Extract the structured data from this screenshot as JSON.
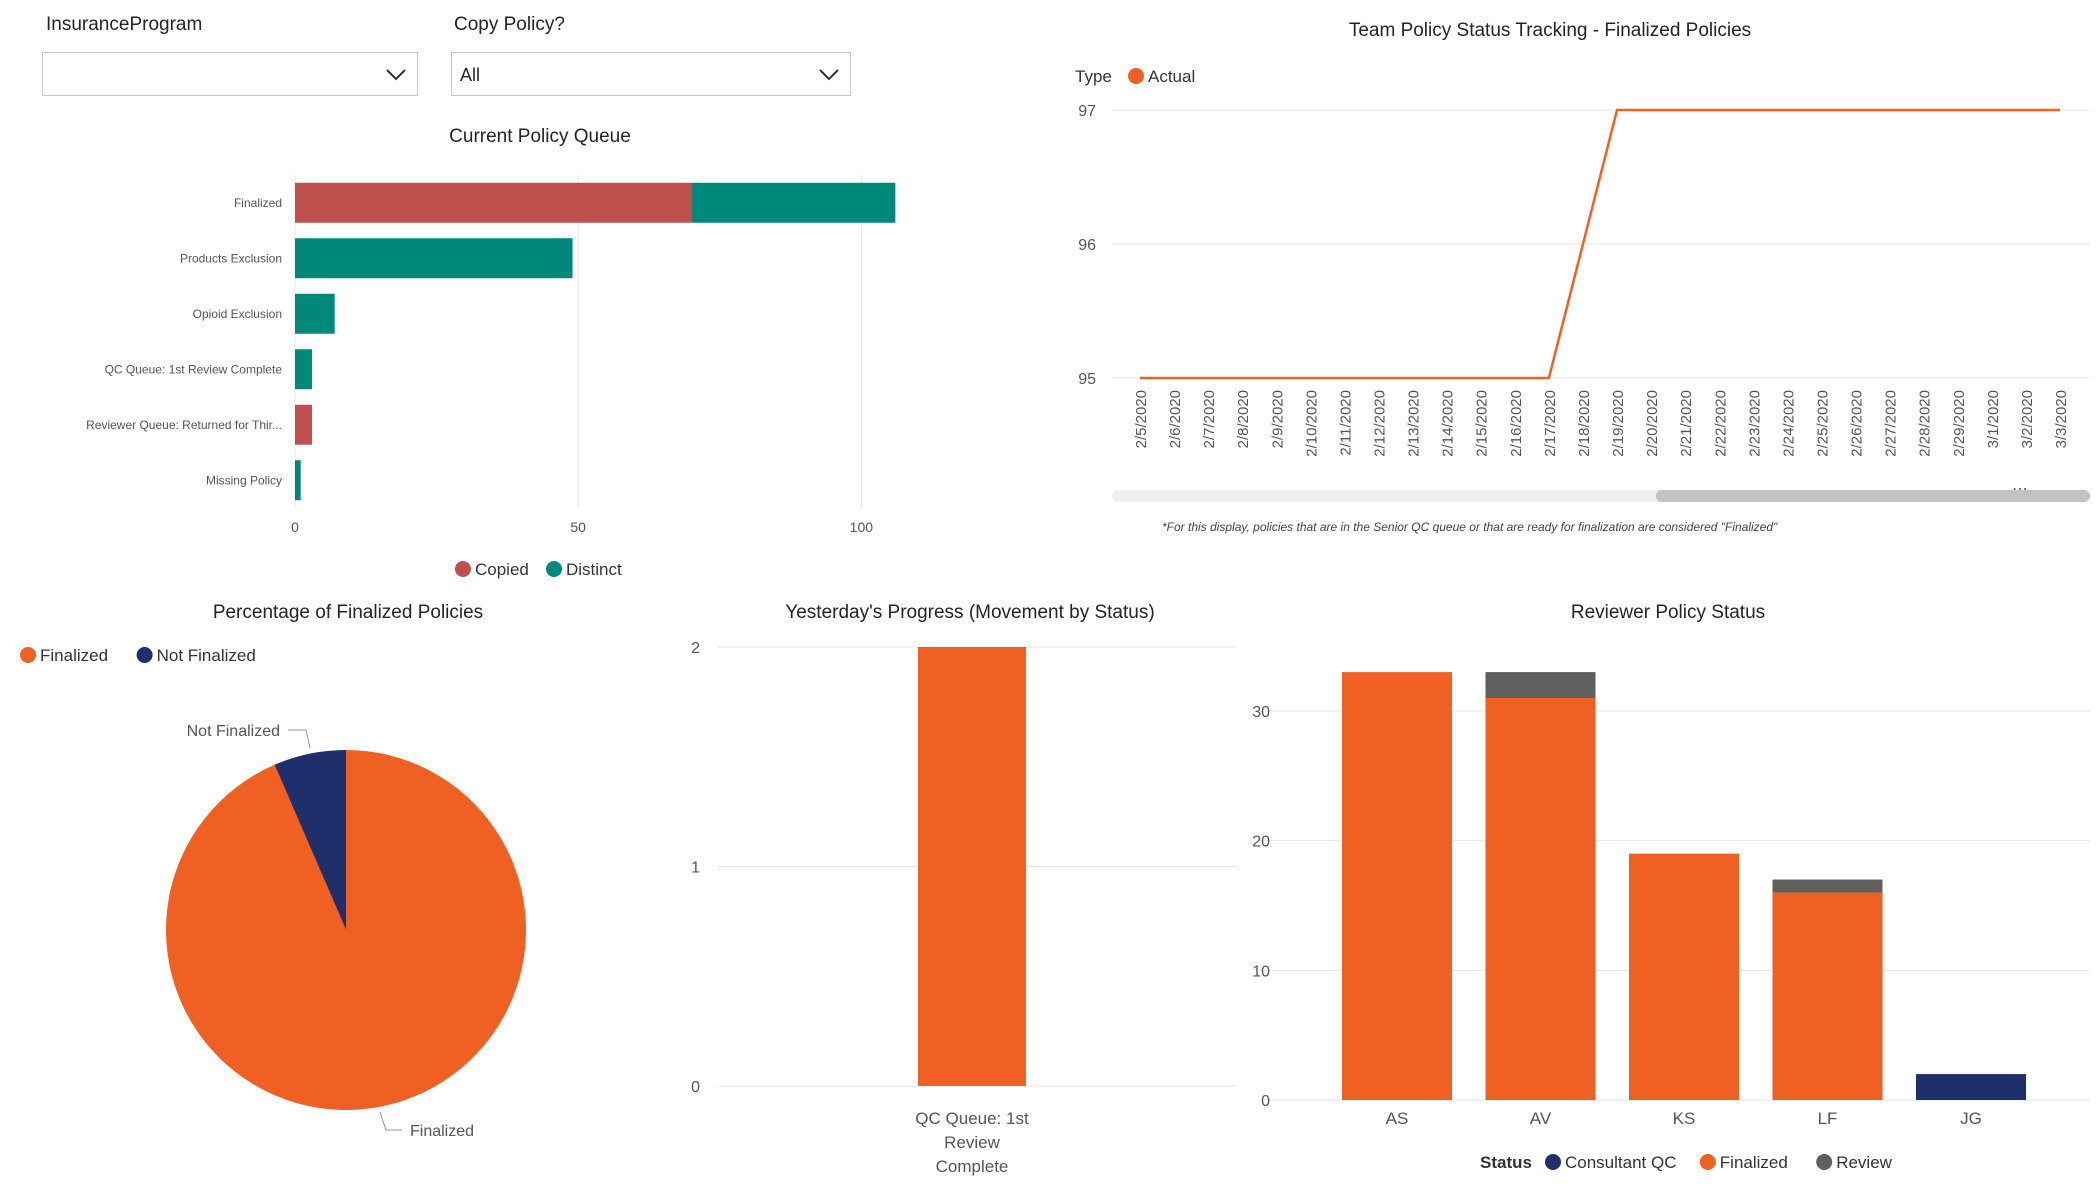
{
  "slicers": {
    "insurance_program": {
      "label": "InsuranceProgram",
      "value": ""
    },
    "copy_policy": {
      "label": "Copy Policy?",
      "value": "All"
    }
  },
  "colors": {
    "copied": "#c0504d",
    "distinct": "#00897b",
    "orange": "#f06022",
    "navy": "#1f2f6b",
    "gray": "#5f5f5f",
    "grid": "#e6e6e6"
  },
  "queue_chart": {
    "title": "Current Policy Queue",
    "legend": [
      {
        "label": "Copied"
      },
      {
        "label": "Distinct"
      }
    ],
    "chart_data": {
      "type": "bar",
      "orientation": "horizontal",
      "stacked": true,
      "categories": [
        "Finalized",
        "Products Exclusion",
        "Opioid Exclusion",
        "QC Queue: 1st Review Complete",
        "Reviewer Queue: Returned for Thir...",
        "Missing Policy"
      ],
      "series": [
        {
          "name": "Copied",
          "values": [
            70,
            0,
            0,
            0,
            3,
            0
          ]
        },
        {
          "name": "Distinct",
          "values": [
            36,
            49,
            7,
            3,
            0,
            1
          ]
        }
      ],
      "xticks": [
        0,
        50,
        100
      ],
      "xlim": [
        0,
        110
      ],
      "grid": true,
      "legend_position": "bottom"
    }
  },
  "tracking_chart": {
    "title": "Team Policy Status Tracking - Finalized Policies",
    "legend_title": "Type",
    "legend": [
      {
        "label": "Actual"
      }
    ],
    "note": "*For this display, policies that are in the Senior QC queue or that are ready for finalization are considered \"Finalized\"",
    "chart_data": {
      "type": "line",
      "x": [
        "2/5/2020",
        "2/6/2020",
        "2/7/2020",
        "2/8/2020",
        "2/9/2020",
        "2/10/2020",
        "2/11/2020",
        "2/12/2020",
        "2/13/2020",
        "2/14/2020",
        "2/15/2020",
        "2/16/2020",
        "2/17/2020",
        "2/18/2020",
        "2/19/2020",
        "2/20/2020",
        "2/21/2020",
        "2/22/2020",
        "2/23/2020",
        "2/24/2020",
        "2/25/2020",
        "2/26/2020",
        "2/27/2020",
        "2/28/2020",
        "2/29/2020",
        "3/1/2020",
        "3/2/2020",
        "3/3/2020"
      ],
      "series": [
        {
          "name": "Actual",
          "values": [
            95,
            95,
            95,
            95,
            95,
            95,
            95,
            95,
            95,
            95,
            95,
            95,
            95,
            96,
            97,
            97,
            97,
            97,
            97,
            97,
            97,
            97,
            97,
            97,
            97,
            97,
            97,
            97
          ]
        }
      ],
      "yticks": [
        95,
        96,
        97
      ],
      "ylim": [
        95,
        97
      ],
      "grid": true,
      "legend_position": "top-left"
    }
  },
  "pie_chart": {
    "title": "Percentage of Finalized Policies",
    "legend": [
      {
        "label": "Finalized"
      },
      {
        "label": "Not Finalized"
      }
    ],
    "chart_data": {
      "type": "pie",
      "labels": [
        "Finalized",
        "Not Finalized"
      ],
      "values": [
        93.5,
        6.5
      ],
      "legend_position": "top-left"
    }
  },
  "progress_chart": {
    "title": "Yesterday's Progress (Movement by Status)",
    "chart_data": {
      "type": "bar",
      "categories": [
        "QC Queue: 1st Review Complete"
      ],
      "category_lines": [
        "QC Queue: 1st",
        "Review",
        "Complete"
      ],
      "values": [
        2
      ],
      "yticks": [
        0,
        1,
        2
      ],
      "ylim": [
        0,
        2
      ],
      "grid": true
    }
  },
  "reviewer_chart": {
    "title": "Reviewer Policy Status",
    "legend_title": "Status",
    "legend": [
      {
        "label": "Consultant QC"
      },
      {
        "label": "Finalized"
      },
      {
        "label": "Review"
      }
    ],
    "chart_data": {
      "type": "bar",
      "stacked": true,
      "categories": [
        "AS",
        "AV",
        "KS",
        "LF",
        "JG"
      ],
      "series": [
        {
          "name": "Consultant QC",
          "values": [
            0,
            0,
            0,
            0,
            2
          ]
        },
        {
          "name": "Finalized",
          "values": [
            33,
            31,
            19,
            16,
            0
          ]
        },
        {
          "name": "Review",
          "values": [
            0,
            2,
            0,
            1,
            0
          ]
        }
      ],
      "yticks": [
        0,
        10,
        20,
        30
      ],
      "ylim": [
        0,
        34
      ],
      "grid": true,
      "legend_position": "bottom"
    }
  }
}
